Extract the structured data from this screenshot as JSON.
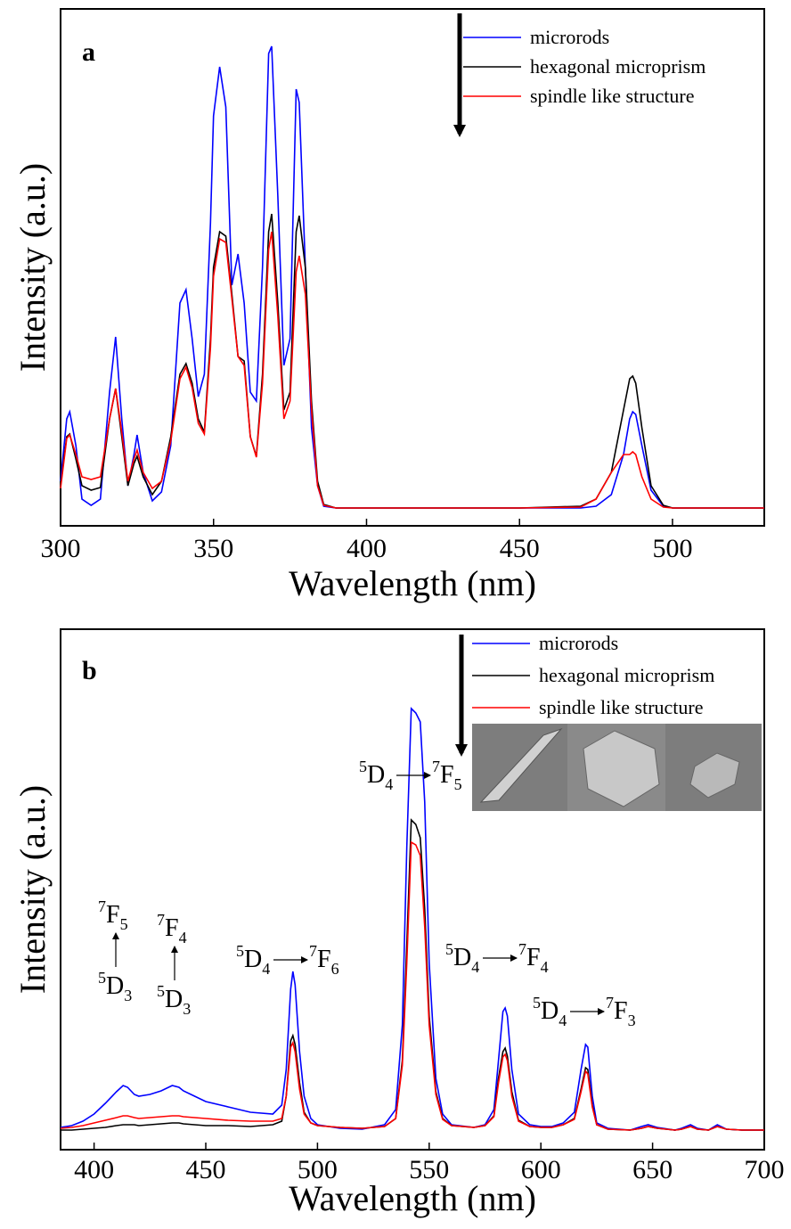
{
  "chart_data": [
    {
      "type": "line",
      "panel_label": "a",
      "xlabel": "Wavelength (nm)",
      "ylabel": "Intensity (a.u.)",
      "x": [
        300,
        302,
        303,
        305,
        307,
        310,
        313,
        316,
        318,
        320,
        322,
        324,
        325,
        327,
        330,
        333,
        336,
        339,
        341,
        343,
        345,
        347,
        349,
        350,
        352,
        354,
        356,
        358,
        360,
        362,
        364,
        366,
        368,
        369,
        371,
        373,
        375,
        377,
        378,
        380,
        382,
        384,
        386,
        390,
        400,
        450,
        470,
        475,
        480,
        484,
        486,
        487,
        488,
        490,
        493,
        497,
        500,
        510,
        530
      ],
      "xlim": [
        300,
        530
      ],
      "xticks": [
        300,
        350,
        400,
        450,
        500
      ],
      "ylim": [
        0,
        580
      ],
      "series": [
        {
          "name": "microrods",
          "color": "#0000ff",
          "values": [
            50,
            120,
            128,
            90,
            30,
            23,
            30,
            150,
            212,
            120,
            45,
            80,
            102,
            60,
            28,
            38,
            90,
            250,
            265,
            210,
            145,
            170,
            340,
            460,
            515,
            470,
            270,
            305,
            250,
            150,
            140,
            290,
            530,
            538,
            370,
            180,
            210,
            490,
            475,
            290,
            110,
            45,
            22,
            20,
            20,
            20,
            20,
            22,
            35,
            80,
            120,
            128,
            125,
            90,
            40,
            22,
            20,
            20,
            20
          ]
        },
        {
          "name": "hexagonal microprism",
          "color": "#000000",
          "values": [
            45,
            100,
            103,
            75,
            45,
            40,
            43,
            120,
            154,
            100,
            45,
            70,
            78,
            55,
            35,
            50,
            100,
            170,
            182,
            160,
            120,
            105,
            210,
            290,
            330,
            325,
            260,
            190,
            185,
            100,
            78,
            170,
            330,
            350,
            250,
            130,
            150,
            330,
            348,
            290,
            140,
            50,
            24,
            20,
            20,
            20,
            22,
            30,
            60,
            130,
            165,
            168,
            160,
            110,
            45,
            23,
            20,
            20,
            20
          ]
        },
        {
          "name": "spindle like structure",
          "color": "#ff0000",
          "values": [
            42,
            98,
            102,
            80,
            55,
            52,
            55,
            120,
            154,
            105,
            50,
            75,
            85,
            60,
            42,
            50,
            95,
            165,
            178,
            155,
            115,
            103,
            200,
            280,
            322,
            318,
            255,
            190,
            180,
            100,
            77,
            160,
            310,
            330,
            235,
            120,
            140,
            285,
            303,
            260,
            130,
            45,
            23,
            20,
            20,
            20,
            21,
            30,
            60,
            80,
            80,
            83,
            80,
            55,
            30,
            21,
            20,
            20,
            20
          ]
        }
      ]
    },
    {
      "type": "line",
      "panel_label": "b",
      "xlabel": "Wavelength (nm)",
      "ylabel": "Intensity (a.u.)",
      "x": [
        385,
        390,
        395,
        400,
        405,
        410,
        413,
        415,
        418,
        420,
        425,
        430,
        435,
        438,
        440,
        445,
        450,
        460,
        470,
        480,
        484,
        486,
        488,
        489,
        490,
        492,
        494,
        497,
        500,
        510,
        520,
        530,
        535,
        538,
        540,
        542,
        544,
        546,
        548,
        550,
        553,
        556,
        560,
        570,
        575,
        579,
        581,
        583,
        584,
        585,
        587,
        590,
        595,
        600,
        605,
        610,
        615,
        618,
        620,
        621,
        623,
        625,
        630,
        640,
        645,
        648,
        652,
        660,
        663,
        667,
        670,
        675,
        679,
        683,
        690,
        700
      ],
      "xlim": [
        385,
        700
      ],
      "xticks": [
        400,
        450,
        500,
        550,
        600,
        650,
        700
      ],
      "ylim": [
        0,
        584
      ],
      "series": [
        {
          "name": "microrods",
          "color": "#0000ff",
          "values": [
            25,
            27,
            32,
            40,
            52,
            65,
            72,
            70,
            62,
            60,
            62,
            66,
            72,
            70,
            66,
            60,
            54,
            48,
            42,
            40,
            50,
            90,
            180,
            200,
            185,
            110,
            60,
            35,
            28,
            24,
            23,
            28,
            45,
            140,
            340,
            495,
            490,
            480,
            390,
            210,
            80,
            40,
            28,
            25,
            28,
            45,
            100,
            155,
            159,
            150,
            90,
            40,
            28,
            26,
            26,
            30,
            42,
            90,
            118,
            115,
            60,
            30,
            24,
            22,
            26,
            28,
            25,
            22,
            24,
            28,
            24,
            22,
            28,
            23,
            22,
            22
          ]
        },
        {
          "name": "hexagonal microprism",
          "color": "#000000",
          "values": [
            22,
            22,
            23,
            24,
            25,
            27,
            28,
            28,
            28,
            27,
            28,
            29,
            30,
            30,
            29,
            28,
            27,
            27,
            26,
            28,
            32,
            60,
            122,
            128,
            118,
            75,
            42,
            30,
            27,
            25,
            24,
            26,
            35,
            100,
            230,
            370,
            365,
            350,
            270,
            150,
            65,
            35,
            27,
            25,
            27,
            38,
            80,
            110,
            114,
            105,
            65,
            33,
            26,
            25,
            25,
            28,
            35,
            68,
            92,
            90,
            50,
            28,
            23,
            22,
            24,
            26,
            24,
            22,
            23,
            26,
            23,
            22,
            26,
            23,
            22,
            22
          ]
        },
        {
          "name": "spindle like structure",
          "color": "#ff0000",
          "values": [
            24,
            25,
            27,
            30,
            33,
            36,
            38,
            38,
            36,
            35,
            36,
            37,
            38,
            38,
            37,
            36,
            35,
            33,
            32,
            32,
            35,
            60,
            115,
            120,
            110,
            68,
            40,
            30,
            27,
            25,
            24,
            26,
            35,
            95,
            210,
            345,
            342,
            330,
            250,
            140,
            62,
            34,
            27,
            25,
            27,
            37,
            75,
            104,
            107,
            100,
            60,
            32,
            26,
            25,
            25,
            28,
            34,
            65,
            88,
            85,
            48,
            28,
            23,
            22,
            24,
            26,
            24,
            22,
            23,
            26,
            23,
            22,
            26,
            23,
            22,
            22
          ]
        }
      ],
      "annotations": [
        {
          "from": {
            "sup": "5",
            "sym": "D",
            "sub": "4"
          },
          "to": {
            "sup": "7",
            "sym": "F",
            "sub": "6"
          }
        },
        {
          "from": {
            "sup": "5",
            "sym": "D",
            "sub": "4"
          },
          "to": {
            "sup": "7",
            "sym": "F",
            "sub": "5"
          }
        },
        {
          "from": {
            "sup": "5",
            "sym": "D",
            "sub": "4"
          },
          "to": {
            "sup": "7",
            "sym": "F",
            "sub": "4"
          }
        },
        {
          "from": {
            "sup": "5",
            "sym": "D",
            "sub": "4"
          },
          "to": {
            "sup": "7",
            "sym": "F",
            "sub": "3"
          }
        },
        {
          "from": {
            "sup": "5",
            "sym": "D",
            "sub": "3"
          },
          "to": {
            "sup": "7",
            "sym": "F",
            "sub": "5"
          }
        },
        {
          "from": {
            "sup": "5",
            "sym": "D",
            "sub": "3"
          },
          "to": {
            "sup": "7",
            "sym": "F",
            "sub": "4"
          }
        }
      ]
    }
  ]
}
